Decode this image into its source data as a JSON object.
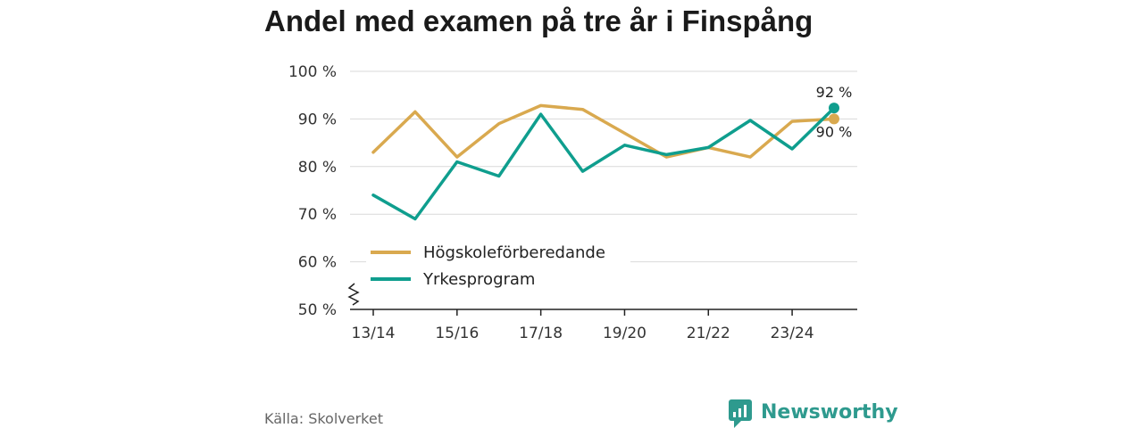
{
  "chart_data": {
    "type": "line",
    "title": "Andel med examen på tre år i Finspång",
    "x": [
      "13/14",
      "14/15",
      "15/16",
      "16/17",
      "17/18",
      "18/19",
      "19/20",
      "20/21",
      "21/22",
      "22/23",
      "23/24",
      "24/25"
    ],
    "x_tick_labels": [
      "13/14",
      "15/16",
      "17/18",
      "19/20",
      "21/22",
      "23/24"
    ],
    "x_tick_indices": [
      0,
      2,
      4,
      6,
      8,
      10
    ],
    "ylim": [
      50,
      100
    ],
    "y_ticks": [
      50,
      60,
      70,
      80,
      90,
      100
    ],
    "y_tick_labels": [
      "50 %",
      "60 %",
      "70 %",
      "80 %",
      "90 %",
      "100 %"
    ],
    "grid": true,
    "axis_break": true,
    "series": [
      {
        "name": "Högskoleförberedande",
        "color": "#d9a94f",
        "values": [
          83,
          91.5,
          82,
          89,
          92.8,
          92,
          87,
          82,
          84,
          82,
          89.5,
          90
        ],
        "end_label": "90 %"
      },
      {
        "name": "Yrkesprogram",
        "color": "#0f9e8e",
        "values": [
          74,
          69,
          81,
          78,
          91,
          79,
          84.5,
          82.5,
          84,
          89.7,
          83.7,
          92.3
        ],
        "end_label": "92 %"
      }
    ],
    "legend_position": "bottom-left"
  },
  "footer": {
    "source": "Källa: Skolverket",
    "brand": "Newsworthy",
    "brand_color": "#2e9a8e",
    "brand_icon": "newsworthy-logo-icon"
  }
}
